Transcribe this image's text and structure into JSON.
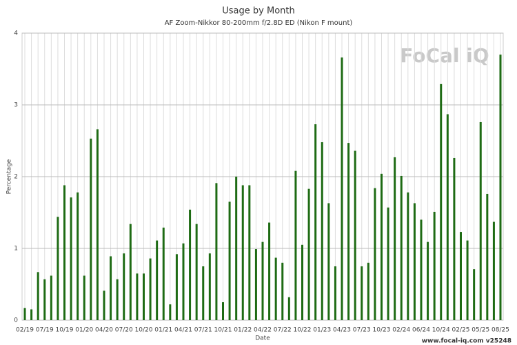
{
  "chart_data": {
    "type": "bar",
    "title": "Usage by Month",
    "subtitle": "AF Zoom-Nikkor 80-200mm f/2.8D ED (Nikon F mount)",
    "x_label": "Date",
    "y_label": "Percentage",
    "watermark": "FoCal iQ",
    "footer": "www.focal-iq.com  v25248",
    "color": "#1e6b14",
    "grid": true,
    "categories": [
      "02/19",
      null,
      null,
      "07/19",
      null,
      null,
      "10/19",
      null,
      null,
      "01/20",
      null,
      null,
      "04/20",
      null,
      null,
      "07/20",
      null,
      null,
      "10/20",
      null,
      null,
      "01/21",
      null,
      null,
      "04/21",
      null,
      null,
      "07/21",
      null,
      null,
      "10/21",
      null,
      null,
      "01/22",
      null,
      null,
      "04/22",
      null,
      null,
      "07/22",
      null,
      null,
      "10/22",
      null,
      null,
      "01/23",
      null,
      null,
      "04/23",
      null,
      null,
      "07/23",
      null,
      null,
      "10/23",
      null,
      null,
      "02/24",
      null,
      null,
      "06/24",
      null,
      null,
      "10/24",
      null,
      null,
      "02/25",
      null,
      null,
      "05/25",
      null,
      null,
      "08/25"
    ],
    "values": [
      0.17,
      0.15,
      0.67,
      0.57,
      0.62,
      1.44,
      1.88,
      1.71,
      1.78,
      0.62,
      2.53,
      2.66,
      0.41,
      0.89,
      0.57,
      0.93,
      1.34,
      0.65,
      0.65,
      0.86,
      1.11,
      1.29,
      0.22,
      0.92,
      1.07,
      1.54,
      1.34,
      0.75,
      0.93,
      1.91,
      0.25,
      1.65,
      2.0,
      1.88,
      1.88,
      0.99,
      1.09,
      1.36,
      0.87,
      0.8,
      0.32,
      2.08,
      1.05,
      1.83,
      2.73,
      2.48,
      1.63,
      0.75,
      3.66,
      2.47,
      2.36,
      0.75,
      0.8,
      1.84,
      2.04,
      1.57,
      2.27,
      2.01,
      1.78,
      1.63,
      1.4,
      1.09,
      1.51,
      3.29,
      2.87,
      2.26,
      1.23,
      1.11,
      0.71,
      2.76,
      1.76,
      1.37,
      3.7
    ],
    "ylim": [
      0,
      4
    ],
    "yticks": [
      0,
      1,
      2,
      3,
      4
    ]
  }
}
